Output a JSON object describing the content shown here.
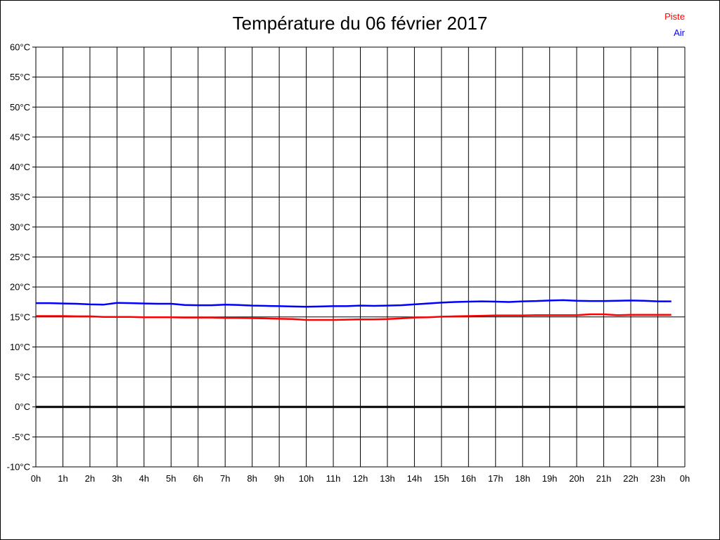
{
  "page": {
    "title": "Température du 06 février 2017",
    "background_color": "#ffffff",
    "border_color": "#000000"
  },
  "legend": {
    "position": "top-right",
    "items": [
      {
        "label": "Piste",
        "color": "#ff0000"
      },
      {
        "label": "Air",
        "color": "#0000ff"
      }
    ]
  },
  "chart_data": {
    "type": "line",
    "title": "Température du 06 février 2017",
    "xlabel": "",
    "ylabel": "",
    "xlim": [
      0,
      24
    ],
    "ylim": [
      -10,
      60
    ],
    "y_tick_step": 5,
    "grid": true,
    "zero_line_emphasized": true,
    "x_tick_labels": [
      "0h",
      "1h",
      "2h",
      "3h",
      "4h",
      "5h",
      "6h",
      "7h",
      "8h",
      "9h",
      "10h",
      "11h",
      "12h",
      "13h",
      "14h",
      "15h",
      "16h",
      "17h",
      "18h",
      "19h",
      "20h",
      "21h",
      "22h",
      "23h",
      "0h"
    ],
    "y_tick_labels": [
      "60°C",
      "55°C",
      "50°C",
      "45°C",
      "40°C",
      "35°C",
      "30°C",
      "25°C",
      "20°C",
      "15°C",
      "10°C",
      "5°C",
      "0°C",
      "-5°C",
      "-10°C"
    ],
    "x_unit": "hour of day",
    "y_unit": "°C",
    "x": [
      0,
      0.5,
      1,
      1.5,
      2,
      2.5,
      3,
      3.5,
      4,
      4.5,
      5,
      5.5,
      6,
      6.5,
      7,
      7.5,
      8,
      8.5,
      9,
      9.5,
      10,
      10.5,
      11,
      11.5,
      12,
      12.5,
      13,
      13.5,
      14,
      14.5,
      15,
      15.5,
      16,
      16.5,
      17,
      17.5,
      18,
      18.5,
      19,
      19.5,
      20,
      20.5,
      21,
      21.5,
      22,
      22.5,
      23,
      23.5
    ],
    "series": [
      {
        "name": "Piste",
        "color": "#ff0000",
        "values": [
          15.15,
          15.15,
          15.15,
          15.1,
          15.1,
          15.0,
          15.0,
          15.0,
          14.95,
          14.95,
          14.95,
          14.9,
          14.9,
          14.9,
          14.85,
          14.85,
          14.8,
          14.75,
          14.7,
          14.65,
          14.5,
          14.5,
          14.5,
          14.55,
          14.6,
          14.6,
          14.65,
          14.75,
          14.9,
          14.95,
          15.05,
          15.1,
          15.15,
          15.2,
          15.25,
          15.25,
          15.25,
          15.3,
          15.3,
          15.3,
          15.3,
          15.45,
          15.45,
          15.3,
          15.35,
          15.35,
          15.35,
          15.35
        ]
      },
      {
        "name": "Air",
        "color": "#0000ff",
        "values": [
          17.3,
          17.3,
          17.25,
          17.2,
          17.1,
          17.05,
          17.35,
          17.3,
          17.25,
          17.2,
          17.2,
          17.0,
          16.95,
          16.95,
          17.05,
          17.0,
          16.9,
          16.85,
          16.8,
          16.75,
          16.7,
          16.75,
          16.8,
          16.8,
          16.9,
          16.85,
          16.9,
          16.95,
          17.1,
          17.25,
          17.4,
          17.5,
          17.55,
          17.6,
          17.55,
          17.5,
          17.6,
          17.65,
          17.75,
          17.8,
          17.7,
          17.65,
          17.65,
          17.7,
          17.75,
          17.7,
          17.6,
          17.6
        ]
      }
    ]
  }
}
